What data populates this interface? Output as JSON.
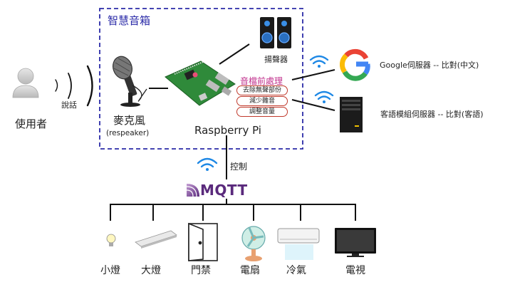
{
  "box": {
    "title": "智慧音箱"
  },
  "user": {
    "label": "使用者"
  },
  "speech": {
    "label": "說話"
  },
  "microphone": {
    "label": "麥克風",
    "sublabel": "(respeaker)"
  },
  "raspberry": {
    "label": "Raspberry Pi"
  },
  "speaker": {
    "label": "揚聲器"
  },
  "preprocess": {
    "title": "音檔前處理",
    "steps": [
      "去除無聲部份",
      "減少雜音",
      "調整音量"
    ]
  },
  "servers": [
    {
      "label": "Google伺服器 -- 比對(中文)"
    },
    {
      "label": "客語模組伺服器 -- 比對(客語)"
    }
  ],
  "control": {
    "label": "控制"
  },
  "mqtt": {
    "label": "MQTT"
  },
  "devices": [
    {
      "label": "小燈"
    },
    {
      "label": "大燈"
    },
    {
      "label": "門禁"
    },
    {
      "label": "電扇"
    },
    {
      "label": "冷氣"
    },
    {
      "label": "電視"
    }
  ],
  "colors": {
    "box_border": "#2b2ba8",
    "preprocess": "#c0308c",
    "pill_border": "#c0392b",
    "wifi": "#1e88e5",
    "mqtt": "#5a2a7c"
  }
}
